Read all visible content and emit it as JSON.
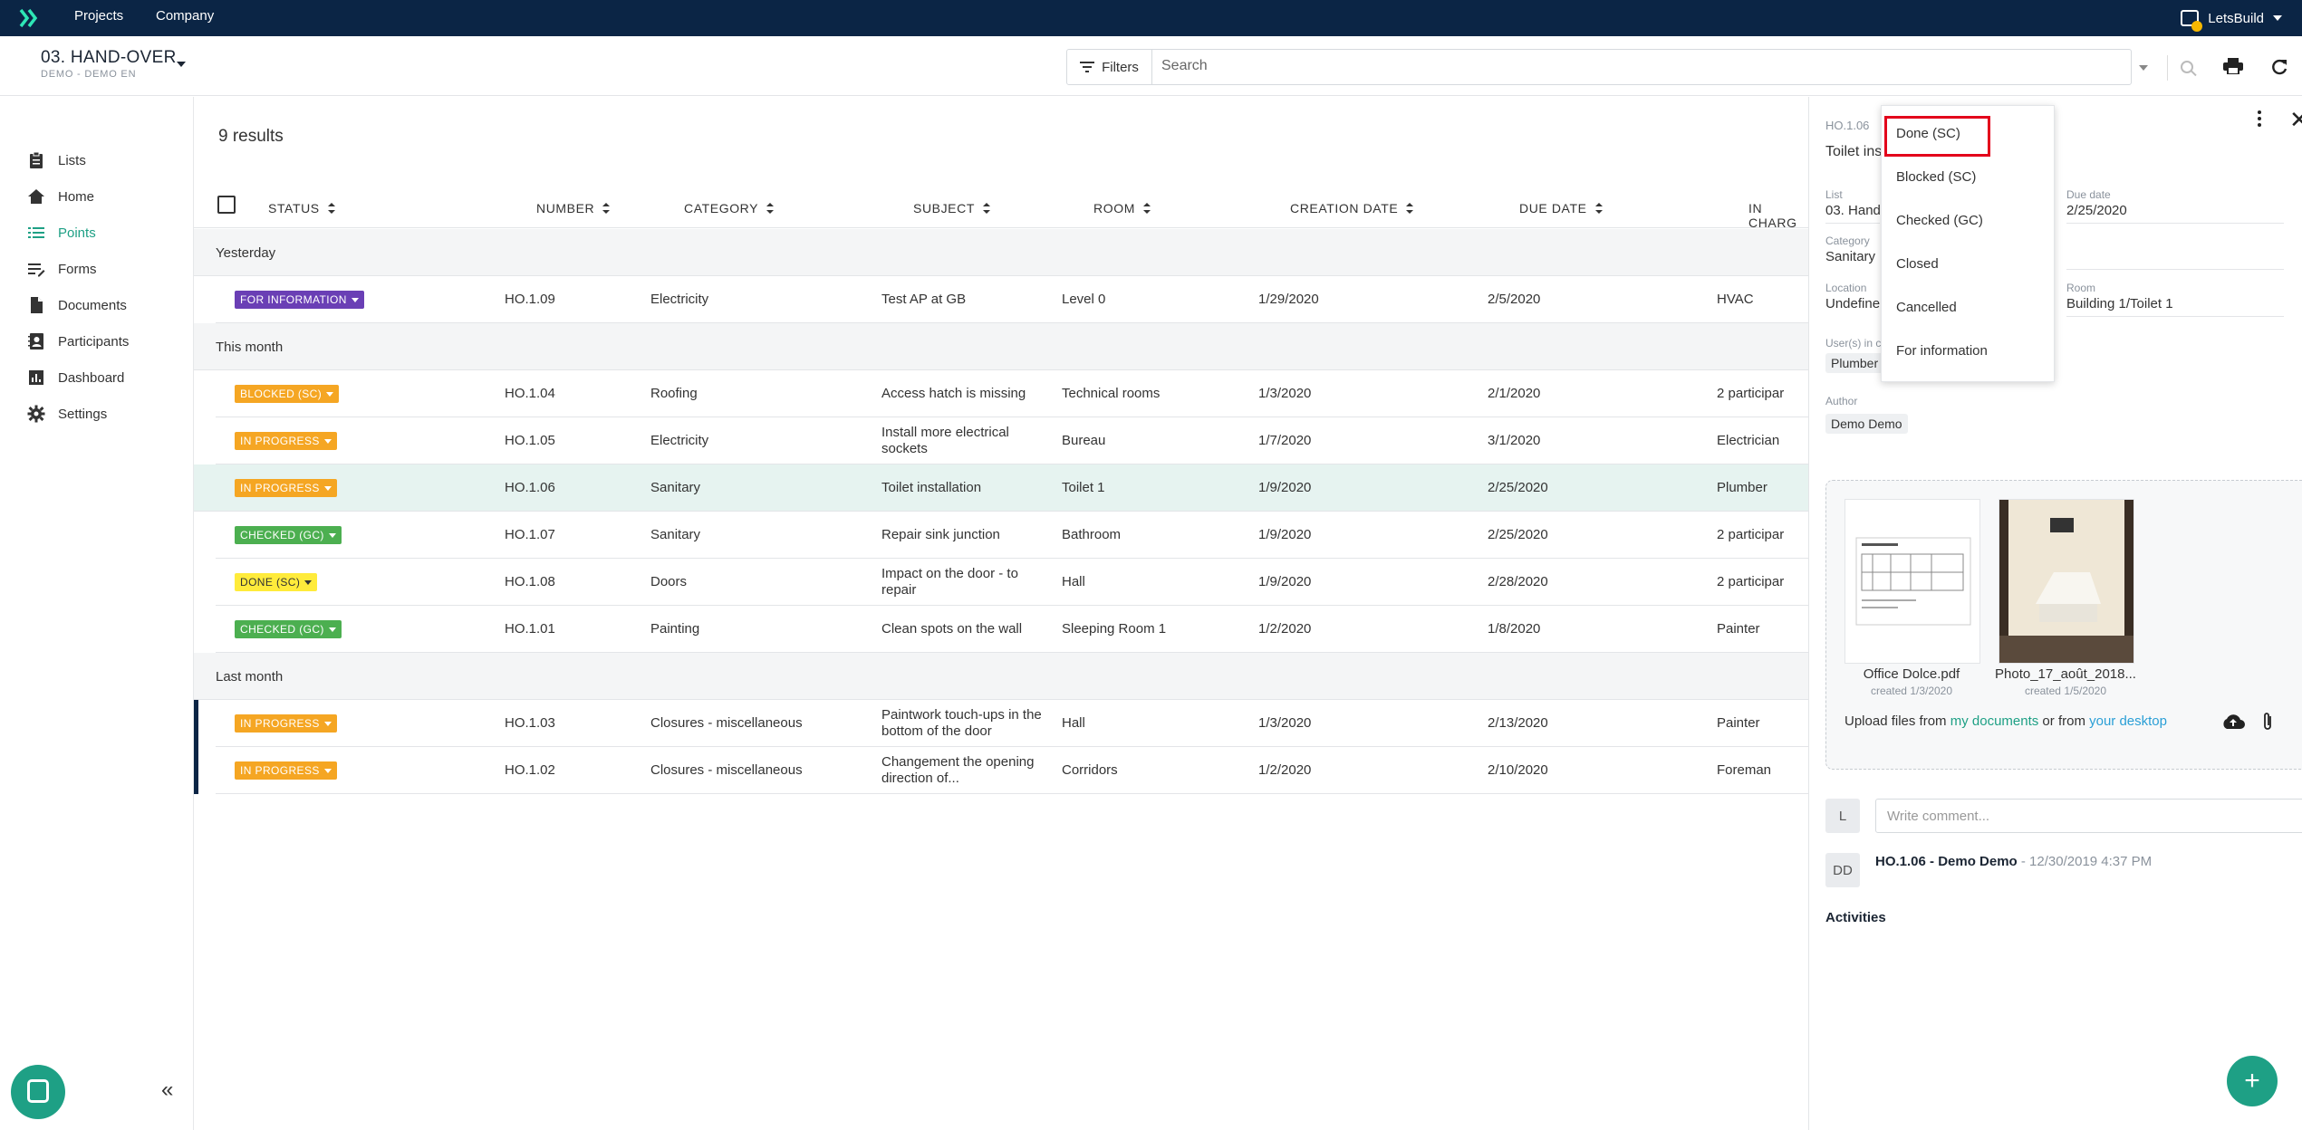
{
  "topbar": {
    "nav": [
      "Projects",
      "Company"
    ],
    "user": "LetsBuild"
  },
  "project": {
    "title": "03. HAND-OVER",
    "subtitle": "DEMO - DEMO EN"
  },
  "search": {
    "filters_label": "Filters",
    "placeholder": "Search"
  },
  "sidebar": {
    "items": [
      {
        "label": "Lists",
        "icon": "clipboard-icon"
      },
      {
        "label": "Home",
        "icon": "home-icon"
      },
      {
        "label": "Points",
        "icon": "list-icon"
      },
      {
        "label": "Forms",
        "icon": "form-icon"
      },
      {
        "label": "Documents",
        "icon": "document-icon"
      },
      {
        "label": "Participants",
        "icon": "contacts-icon"
      },
      {
        "label": "Dashboard",
        "icon": "bar-chart-icon"
      },
      {
        "label": "Settings",
        "icon": "gear-icon"
      }
    ],
    "active": "Points"
  },
  "list": {
    "results": "9 results",
    "columns": [
      "STATUS",
      "NUMBER",
      "CATEGORY",
      "SUBJECT",
      "ROOM",
      "CREATION DATE",
      "DUE DATE",
      "IN CHARG"
    ],
    "groups": [
      {
        "label": "Yesterday",
        "rows": [
          {
            "status": "FOR INFORMATION",
            "color": "#6a3fb5",
            "number": "HO.1.09",
            "category": "Electricity",
            "subject": "Test AP at GB",
            "room": "Level 0",
            "created": "1/29/2020",
            "due": "2/5/2020",
            "in_charge": "HVAC"
          }
        ]
      },
      {
        "label": "This month",
        "rows": [
          {
            "status": "BLOCKED (SC)",
            "color": "#f5a623",
            "number": "HO.1.04",
            "category": "Roofing",
            "subject": "Access hatch is missing",
            "room": "Technical rooms",
            "created": "1/3/2020",
            "due": "2/1/2020",
            "in_charge": "2 participar"
          },
          {
            "status": "IN PROGRESS",
            "color": "#f5a623",
            "number": "HO.1.05",
            "category": "Electricity",
            "subject": "Install more electrical sockets",
            "room": "Bureau",
            "created": "1/7/2020",
            "due": "3/1/2020",
            "in_charge": "Electrician"
          },
          {
            "status": "IN PROGRESS",
            "color": "#f5a623",
            "number": "HO.1.06",
            "category": "Sanitary",
            "subject": "Toilet installation",
            "room": "Toilet 1",
            "created": "1/9/2020",
            "due": "2/25/2020",
            "in_charge": "Plumber"
          },
          {
            "status": "CHECKED (GC)",
            "color": "#4caf50",
            "number": "HO.1.07",
            "category": "Sanitary",
            "subject": "Repair sink junction",
            "room": "Bathroom",
            "created": "1/9/2020",
            "due": "2/25/2020",
            "in_charge": "2 participar"
          },
          {
            "status": "DONE (SC)",
            "color": "#ffeb3b",
            "number": "HO.1.08",
            "category": "Doors",
            "subject": "Impact on the door - to repair",
            "room": "Hall",
            "created": "1/9/2020",
            "due": "2/28/2020",
            "in_charge": "2 participar"
          },
          {
            "status": "CHECKED (GC)",
            "color": "#4caf50",
            "number": "HO.1.01",
            "category": "Painting",
            "subject": "Clean spots on the wall",
            "room": "Sleeping Room 1",
            "created": "1/2/2020",
            "due": "1/8/2020",
            "in_charge": "Painter"
          }
        ]
      },
      {
        "label": "Last month",
        "rows": [
          {
            "status": "IN PROGRESS",
            "color": "#f5a623",
            "number": "HO.1.03",
            "category": "Closures - miscellaneous",
            "subject": "Paintwork touch-ups in the bottom of the door",
            "room": "Hall",
            "created": "1/3/2020",
            "due": "2/13/2020",
            "in_charge": "Painter"
          },
          {
            "status": "IN PROGRESS",
            "color": "#f5a623",
            "number": "HO.1.02",
            "category": "Closures - miscellaneous",
            "subject": "Changement the opening direction of...",
            "room": "Corridors",
            "created": "1/2/2020",
            "due": "2/10/2020",
            "in_charge": "Foreman"
          }
        ]
      }
    ]
  },
  "detail": {
    "number": "HO.1.06",
    "title": "Toilet ins",
    "list_label": "List",
    "list_value": "03. Hand",
    "due_label": "Due date",
    "due_value": "2/25/2020",
    "category_label": "Category",
    "category_value": "Sanitary",
    "location_label": "Location",
    "location_value": "Undefine",
    "room_label": "Room",
    "room_value": "Building 1/Toilet 1",
    "users_label": "User(s) in c",
    "users_value": "Plumber",
    "author_label": "Author",
    "author_value": "Demo Demo",
    "files": [
      {
        "name": "Office Dolce.pdf",
        "date": "created 1/3/2020"
      },
      {
        "name": "Photo_17_août_2018...",
        "date": "created 1/5/2020"
      }
    ],
    "upload_prefix": "Upload files from ",
    "upload_link1": "my documents",
    "upload_mid": " or from ",
    "upload_link2": "your desktop",
    "comment_avatar": "L",
    "comment_placeholder": "Write comment...",
    "activity_avatar": "DD",
    "activity_title": "HO.1.06 - Demo Demo",
    "activity_time": " - 12/30/2019 4:37 PM",
    "activities_heading": "Activities"
  },
  "status_dropdown": {
    "options": [
      "Done (SC)",
      "Blocked (SC)",
      "Checked (GC)",
      "Closed",
      "Cancelled",
      "For information"
    ],
    "highlighted": "Done (SC)"
  },
  "colors": {
    "topbar": "#0b2545",
    "accent": "#1ea085",
    "highlight_box": "#e3001b"
  }
}
